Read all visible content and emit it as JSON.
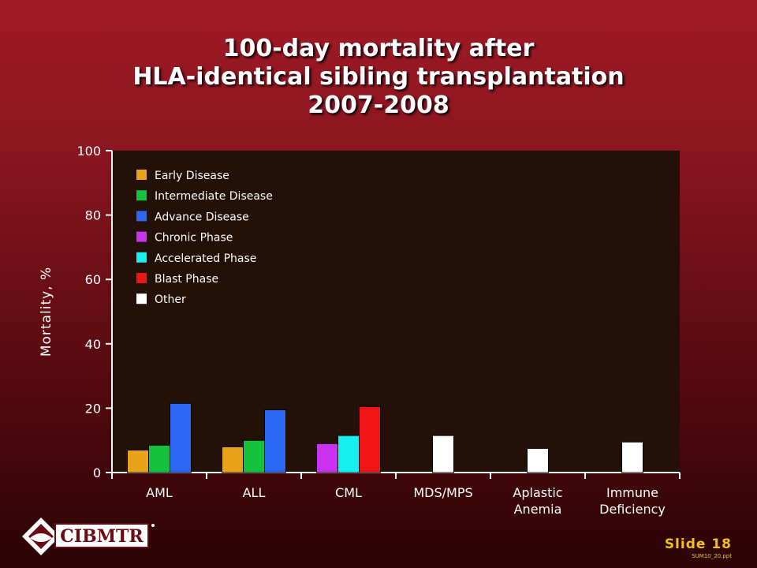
{
  "title": {
    "line1": "100-day mortality after",
    "line2": "HLA-identical sibling transplantation",
    "line3": "2007-2008"
  },
  "footer": {
    "logo_text": "CIBMTR",
    "slide_label": "Slide 18",
    "code": "SUM10_20.ppt"
  },
  "colors": {
    "plot_background": "#231008",
    "axis": "#ffffff",
    "early": "#e8a31b",
    "intermediate": "#16c23c",
    "advance": "#2b67f2",
    "chronic": "#c832f0",
    "accelerated": "#18f0f0",
    "blast": "#f01414",
    "other": "#ffffff",
    "footer_accent": "#f5c01a"
  },
  "chart_data": {
    "type": "bar",
    "ylabel": "Mortality, %",
    "xlabel": "",
    "ylim": [
      0,
      100
    ],
    "yticks": [
      0,
      20,
      40,
      60,
      80,
      100
    ],
    "grid": false,
    "legend_position": "top-left",
    "legend": [
      {
        "name": "Early Disease",
        "color": "#e8a31b"
      },
      {
        "name": "Intermediate Disease",
        "color": "#16c23c"
      },
      {
        "name": "Advance Disease",
        "color": "#2b67f2"
      },
      {
        "name": "Chronic Phase",
        "color": "#c832f0"
      },
      {
        "name": "Accelerated Phase",
        "color": "#18f0f0"
      },
      {
        "name": "Blast Phase",
        "color": "#f01414"
      },
      {
        "name": "Other",
        "color": "#ffffff"
      }
    ],
    "groups": [
      {
        "category": [
          "AML"
        ],
        "bars": [
          {
            "series": "Early Disease",
            "value": 7
          },
          {
            "series": "Intermediate Disease",
            "value": 8.5
          },
          {
            "series": "Advance Disease",
            "value": 21.5
          }
        ]
      },
      {
        "category": [
          "ALL"
        ],
        "bars": [
          {
            "series": "Early Disease",
            "value": 8
          },
          {
            "series": "Intermediate Disease",
            "value": 10
          },
          {
            "series": "Advance Disease",
            "value": 19.5
          }
        ]
      },
      {
        "category": [
          "CML"
        ],
        "bars": [
          {
            "series": "Chronic Phase",
            "value": 9
          },
          {
            "series": "Accelerated Phase",
            "value": 11.5
          },
          {
            "series": "Blast Phase",
            "value": 20.5
          }
        ]
      },
      {
        "category": [
          "MDS/MPS"
        ],
        "bars": [
          {
            "series": "Other",
            "value": 11.5
          }
        ]
      },
      {
        "category": [
          "Aplastic",
          "Anemia"
        ],
        "bars": [
          {
            "series": "Other",
            "value": 7.5
          }
        ]
      },
      {
        "category": [
          "Immune",
          "Deficiency"
        ],
        "bars": [
          {
            "series": "Other",
            "value": 9.5
          }
        ]
      }
    ]
  }
}
